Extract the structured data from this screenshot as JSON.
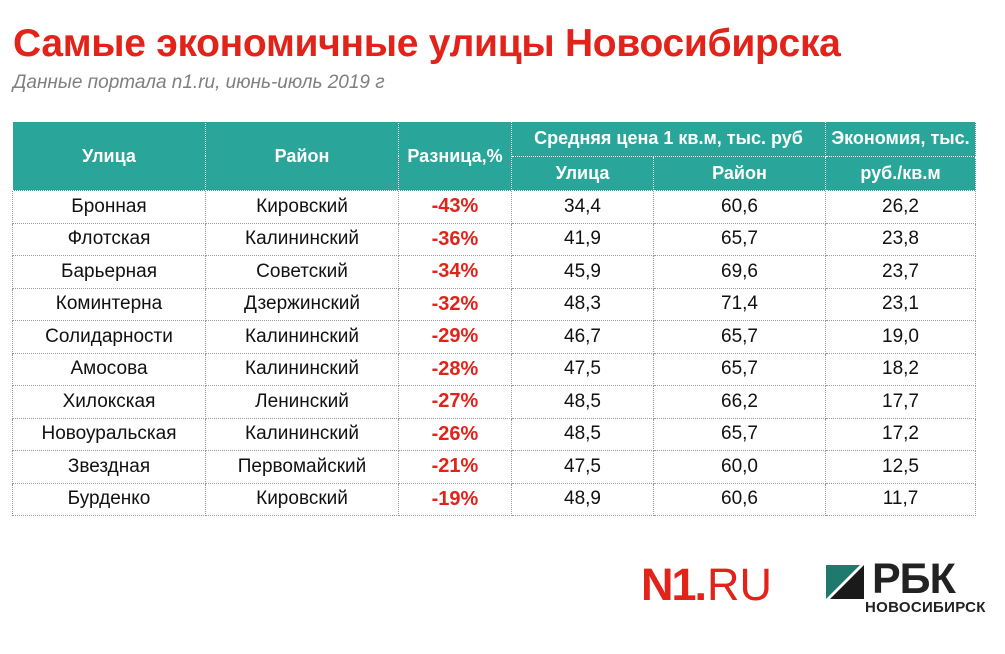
{
  "title": "Самые экономичные улицы Новосибирска",
  "subtitle": "Данные портала n1.ru, июнь-июль 2019 г",
  "table": {
    "headers": {
      "street": "Улица",
      "district": "Район",
      "diff": "Разница,%",
      "avg_price": "Средняя цена 1 кв.м, тыс. руб",
      "avg_street": "Улица",
      "avg_district": "Район",
      "savings_line1": "Экономия, тыс.",
      "savings_line2": "руб./кв.м"
    },
    "rows": [
      {
        "street": "Бронная",
        "district": "Кировский",
        "diff": "-43%",
        "price_street": "34,4",
        "price_district": "60,6",
        "savings": "26,2"
      },
      {
        "street": "Флотская",
        "district": "Калининский",
        "diff": "-36%",
        "price_street": "41,9",
        "price_district": "65,7",
        "savings": "23,8"
      },
      {
        "street": "Барьерная",
        "district": "Советский",
        "diff": "-34%",
        "price_street": "45,9",
        "price_district": "69,6",
        "savings": "23,7"
      },
      {
        "street": "Коминтерна",
        "district": "Дзержинский",
        "diff": "-32%",
        "price_street": "48,3",
        "price_district": "71,4",
        "savings": "23,1"
      },
      {
        "street": "Солидарности",
        "district": "Калининский",
        "diff": "-29%",
        "price_street": "46,7",
        "price_district": "65,7",
        "savings": "19,0"
      },
      {
        "street": "Амосова",
        "district": "Калининский",
        "diff": "-28%",
        "price_street": "47,5",
        "price_district": "65,7",
        "savings": "18,2"
      },
      {
        "street": "Хилокская",
        "district": "Ленинский",
        "diff": "-27%",
        "price_street": "48,5",
        "price_district": "66,2",
        "savings": "17,7"
      },
      {
        "street": "Новоуральская",
        "district": "Калининский",
        "diff": "-26%",
        "price_street": "48,5",
        "price_district": "65,7",
        "savings": "17,2"
      },
      {
        "street": "Звездная",
        "district": "Первомайский",
        "diff": "-21%",
        "price_street": "47,5",
        "price_district": "60,0",
        "savings": "12,5"
      },
      {
        "street": "Бурденко",
        "district": "Кировский",
        "diff": "-19%",
        "price_street": "48,9",
        "price_district": "60,6",
        "savings": "11,7"
      }
    ]
  },
  "logos": {
    "n1": {
      "mark": "N1",
      "dot": ".",
      "domain": "RU"
    },
    "rbk": {
      "name": "РБК",
      "city": "НОВОСИБИРСК"
    }
  },
  "colors": {
    "title_red": "#e2231a",
    "header_teal": "#2aa59a",
    "subtitle_gray": "#7f7f7f"
  }
}
